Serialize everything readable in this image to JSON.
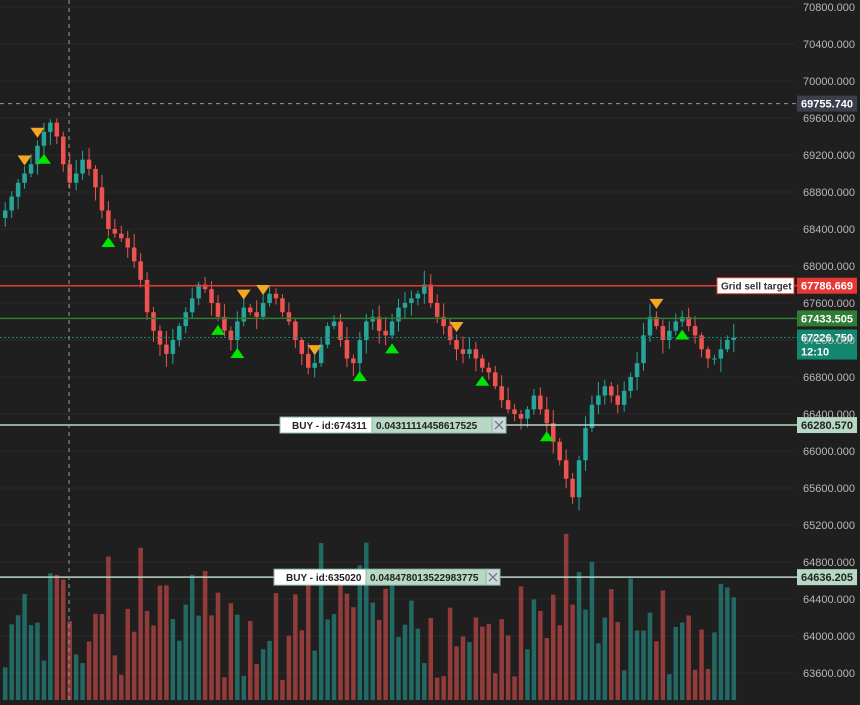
{
  "chart_data": {
    "type": "candlestick",
    "y_axis": {
      "ticks": [
        "70800.000",
        "70400.000",
        "70000.000",
        "69600.000",
        "69200.000",
        "68800.000",
        "68400.000",
        "68000.000",
        "67600.000",
        "67200.000",
        "66800.000",
        "66400.000",
        "66000.000",
        "65600.000",
        "65200.000",
        "64800.000",
        "64400.000",
        "64000.000",
        "63600.000"
      ],
      "range": [
        63400,
        70950
      ]
    },
    "crosshair": {
      "price_label": "69755.740",
      "price": 69755.74
    },
    "price_lines": [
      {
        "price": 67786.669,
        "label": "67786.669",
        "color": "#e53935",
        "style": "solid",
        "tag_text": "Grid sell target"
      },
      {
        "price": 67433.505,
        "label": "67433.505",
        "color": "#2e7d32",
        "style": "solid"
      },
      {
        "price": 67226.75,
        "label": "67226.750",
        "countdown": "12:10",
        "color": "#12866e",
        "style": "dotted"
      },
      {
        "price": 66280.57,
        "label": "66280.570",
        "color": "#b7d8c5",
        "style": "solid"
      },
      {
        "price": 64636.205,
        "label": "64636.205",
        "color": "#b7d8c5",
        "style": "solid"
      }
    ],
    "orders": [
      {
        "price": 66280.57,
        "side_label": "BUY - id:674311",
        "quantity": "0.04311114458617525",
        "close_icon": "close-icon"
      },
      {
        "price": 64636.205,
        "side_label": "BUY - id:635020",
        "quantity": "0.048478013522983775",
        "close_icon": "close-icon"
      }
    ],
    "candles_close": [
      68600,
      68750,
      68900,
      69000,
      69100,
      69300,
      69450,
      69550,
      69400,
      69100,
      68900,
      69000,
      69150,
      69050,
      68850,
      68600,
      68400,
      68350,
      68300,
      68200,
      68050,
      67850,
      67500,
      67300,
      67150,
      67050,
      67200,
      67350,
      67500,
      67650,
      67800,
      67750,
      67600,
      67450,
      67300,
      67200,
      67400,
      67550,
      67500,
      67450,
      67600,
      67700,
      67650,
      67500,
      67400,
      67200,
      67050,
      66900,
      66950,
      67150,
      67350,
      67400,
      67200,
      67000,
      66950,
      67200,
      67400,
      67450,
      67300,
      67250,
      67400,
      67550,
      67600,
      67650,
      67700,
      67800,
      67600,
      67450,
      67350,
      67200,
      67100,
      67050,
      67100,
      67000,
      66900,
      66850,
      66700,
      66550,
      66450,
      66400,
      66350,
      66450,
      66600,
      66450,
      66300,
      66100,
      65900,
      65700,
      65500,
      65900,
      66250,
      66500,
      66600,
      66700,
      66600,
      66500,
      66650,
      66800,
      66950,
      67250,
      67450,
      67350,
      67200,
      67300,
      67400,
      67450,
      67350,
      67250,
      67100,
      67000,
      67000,
      67100,
      67200,
      67226.75
    ],
    "buy_markers": [
      6,
      16,
      33,
      36,
      55,
      60,
      74,
      84,
      105
    ],
    "sell_markers": [
      3,
      5,
      37,
      40,
      48,
      70,
      101
    ],
    "colors": {
      "up": "#26a69a",
      "down": "#ef5350",
      "buy_marker": "#00e600",
      "sell_marker": "#f5a623"
    }
  }
}
